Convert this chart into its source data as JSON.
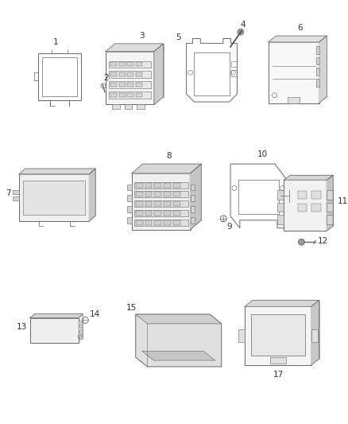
{
  "background_color": "#ffffff",
  "figsize": [
    4.38,
    5.33
  ],
  "dpi": 100,
  "gray": "#666666",
  "dark": "#333333",
  "light_gray": "#cccccc",
  "mid_gray": "#999999"
}
